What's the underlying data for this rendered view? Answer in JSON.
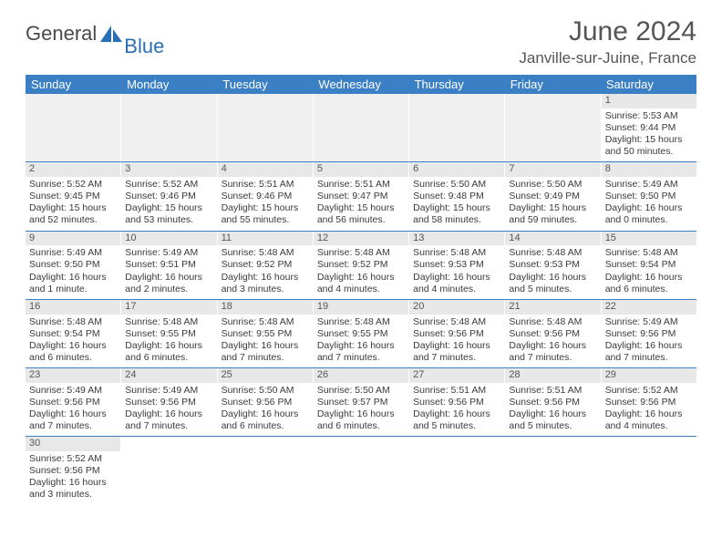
{
  "logo": {
    "text1": "General",
    "text2": "Blue",
    "accent_color": "#2a6fb5",
    "text_color": "#4a4a4a"
  },
  "header": {
    "title": "June 2024",
    "location": "Janville-sur-Juine, France"
  },
  "colors": {
    "header_bg": "#3b7fc4",
    "header_text": "#ffffff",
    "daynum_bg": "#e8e8e8",
    "border": "#3b7fc4",
    "body_text": "#3a3a3a",
    "title_text": "#555555"
  },
  "day_labels": [
    "Sunday",
    "Monday",
    "Tuesday",
    "Wednesday",
    "Thursday",
    "Friday",
    "Saturday"
  ],
  "weeks": [
    [
      {
        "blank": true
      },
      {
        "blank": true
      },
      {
        "blank": true
      },
      {
        "blank": true
      },
      {
        "blank": true
      },
      {
        "blank": true
      },
      {
        "day": "1",
        "sunrise": "Sunrise: 5:53 AM",
        "sunset": "Sunset: 9:44 PM",
        "daylight": "Daylight: 15 hours and 50 minutes."
      }
    ],
    [
      {
        "day": "2",
        "sunrise": "Sunrise: 5:52 AM",
        "sunset": "Sunset: 9:45 PM",
        "daylight": "Daylight: 15 hours and 52 minutes."
      },
      {
        "day": "3",
        "sunrise": "Sunrise: 5:52 AM",
        "sunset": "Sunset: 9:46 PM",
        "daylight": "Daylight: 15 hours and 53 minutes."
      },
      {
        "day": "4",
        "sunrise": "Sunrise: 5:51 AM",
        "sunset": "Sunset: 9:46 PM",
        "daylight": "Daylight: 15 hours and 55 minutes."
      },
      {
        "day": "5",
        "sunrise": "Sunrise: 5:51 AM",
        "sunset": "Sunset: 9:47 PM",
        "daylight": "Daylight: 15 hours and 56 minutes."
      },
      {
        "day": "6",
        "sunrise": "Sunrise: 5:50 AM",
        "sunset": "Sunset: 9:48 PM",
        "daylight": "Daylight: 15 hours and 58 minutes."
      },
      {
        "day": "7",
        "sunrise": "Sunrise: 5:50 AM",
        "sunset": "Sunset: 9:49 PM",
        "daylight": "Daylight: 15 hours and 59 minutes."
      },
      {
        "day": "8",
        "sunrise": "Sunrise: 5:49 AM",
        "sunset": "Sunset: 9:50 PM",
        "daylight": "Daylight: 16 hours and 0 minutes."
      }
    ],
    [
      {
        "day": "9",
        "sunrise": "Sunrise: 5:49 AM",
        "sunset": "Sunset: 9:50 PM",
        "daylight": "Daylight: 16 hours and 1 minute."
      },
      {
        "day": "10",
        "sunrise": "Sunrise: 5:49 AM",
        "sunset": "Sunset: 9:51 PM",
        "daylight": "Daylight: 16 hours and 2 minutes."
      },
      {
        "day": "11",
        "sunrise": "Sunrise: 5:48 AM",
        "sunset": "Sunset: 9:52 PM",
        "daylight": "Daylight: 16 hours and 3 minutes."
      },
      {
        "day": "12",
        "sunrise": "Sunrise: 5:48 AM",
        "sunset": "Sunset: 9:52 PM",
        "daylight": "Daylight: 16 hours and 4 minutes."
      },
      {
        "day": "13",
        "sunrise": "Sunrise: 5:48 AM",
        "sunset": "Sunset: 9:53 PM",
        "daylight": "Daylight: 16 hours and 4 minutes."
      },
      {
        "day": "14",
        "sunrise": "Sunrise: 5:48 AM",
        "sunset": "Sunset: 9:53 PM",
        "daylight": "Daylight: 16 hours and 5 minutes."
      },
      {
        "day": "15",
        "sunrise": "Sunrise: 5:48 AM",
        "sunset": "Sunset: 9:54 PM",
        "daylight": "Daylight: 16 hours and 6 minutes."
      }
    ],
    [
      {
        "day": "16",
        "sunrise": "Sunrise: 5:48 AM",
        "sunset": "Sunset: 9:54 PM",
        "daylight": "Daylight: 16 hours and 6 minutes."
      },
      {
        "day": "17",
        "sunrise": "Sunrise: 5:48 AM",
        "sunset": "Sunset: 9:55 PM",
        "daylight": "Daylight: 16 hours and 6 minutes."
      },
      {
        "day": "18",
        "sunrise": "Sunrise: 5:48 AM",
        "sunset": "Sunset: 9:55 PM",
        "daylight": "Daylight: 16 hours and 7 minutes."
      },
      {
        "day": "19",
        "sunrise": "Sunrise: 5:48 AM",
        "sunset": "Sunset: 9:55 PM",
        "daylight": "Daylight: 16 hours and 7 minutes."
      },
      {
        "day": "20",
        "sunrise": "Sunrise: 5:48 AM",
        "sunset": "Sunset: 9:56 PM",
        "daylight": "Daylight: 16 hours and 7 minutes."
      },
      {
        "day": "21",
        "sunrise": "Sunrise: 5:48 AM",
        "sunset": "Sunset: 9:56 PM",
        "daylight": "Daylight: 16 hours and 7 minutes."
      },
      {
        "day": "22",
        "sunrise": "Sunrise: 5:49 AM",
        "sunset": "Sunset: 9:56 PM",
        "daylight": "Daylight: 16 hours and 7 minutes."
      }
    ],
    [
      {
        "day": "23",
        "sunrise": "Sunrise: 5:49 AM",
        "sunset": "Sunset: 9:56 PM",
        "daylight": "Daylight: 16 hours and 7 minutes."
      },
      {
        "day": "24",
        "sunrise": "Sunrise: 5:49 AM",
        "sunset": "Sunset: 9:56 PM",
        "daylight": "Daylight: 16 hours and 7 minutes."
      },
      {
        "day": "25",
        "sunrise": "Sunrise: 5:50 AM",
        "sunset": "Sunset: 9:56 PM",
        "daylight": "Daylight: 16 hours and 6 minutes."
      },
      {
        "day": "26",
        "sunrise": "Sunrise: 5:50 AM",
        "sunset": "Sunset: 9:57 PM",
        "daylight": "Daylight: 16 hours and 6 minutes."
      },
      {
        "day": "27",
        "sunrise": "Sunrise: 5:51 AM",
        "sunset": "Sunset: 9:56 PM",
        "daylight": "Daylight: 16 hours and 5 minutes."
      },
      {
        "day": "28",
        "sunrise": "Sunrise: 5:51 AM",
        "sunset": "Sunset: 9:56 PM",
        "daylight": "Daylight: 16 hours and 5 minutes."
      },
      {
        "day": "29",
        "sunrise": "Sunrise: 5:52 AM",
        "sunset": "Sunset: 9:56 PM",
        "daylight": "Daylight: 16 hours and 4 minutes."
      }
    ],
    [
      {
        "day": "30",
        "sunrise": "Sunrise: 5:52 AM",
        "sunset": "Sunset: 9:56 PM",
        "daylight": "Daylight: 16 hours and 3 minutes."
      },
      {
        "blank": true,
        "noborder": true
      },
      {
        "blank": true,
        "noborder": true
      },
      {
        "blank": true,
        "noborder": true
      },
      {
        "blank": true,
        "noborder": true
      },
      {
        "blank": true,
        "noborder": true
      },
      {
        "blank": true,
        "noborder": true
      }
    ]
  ]
}
